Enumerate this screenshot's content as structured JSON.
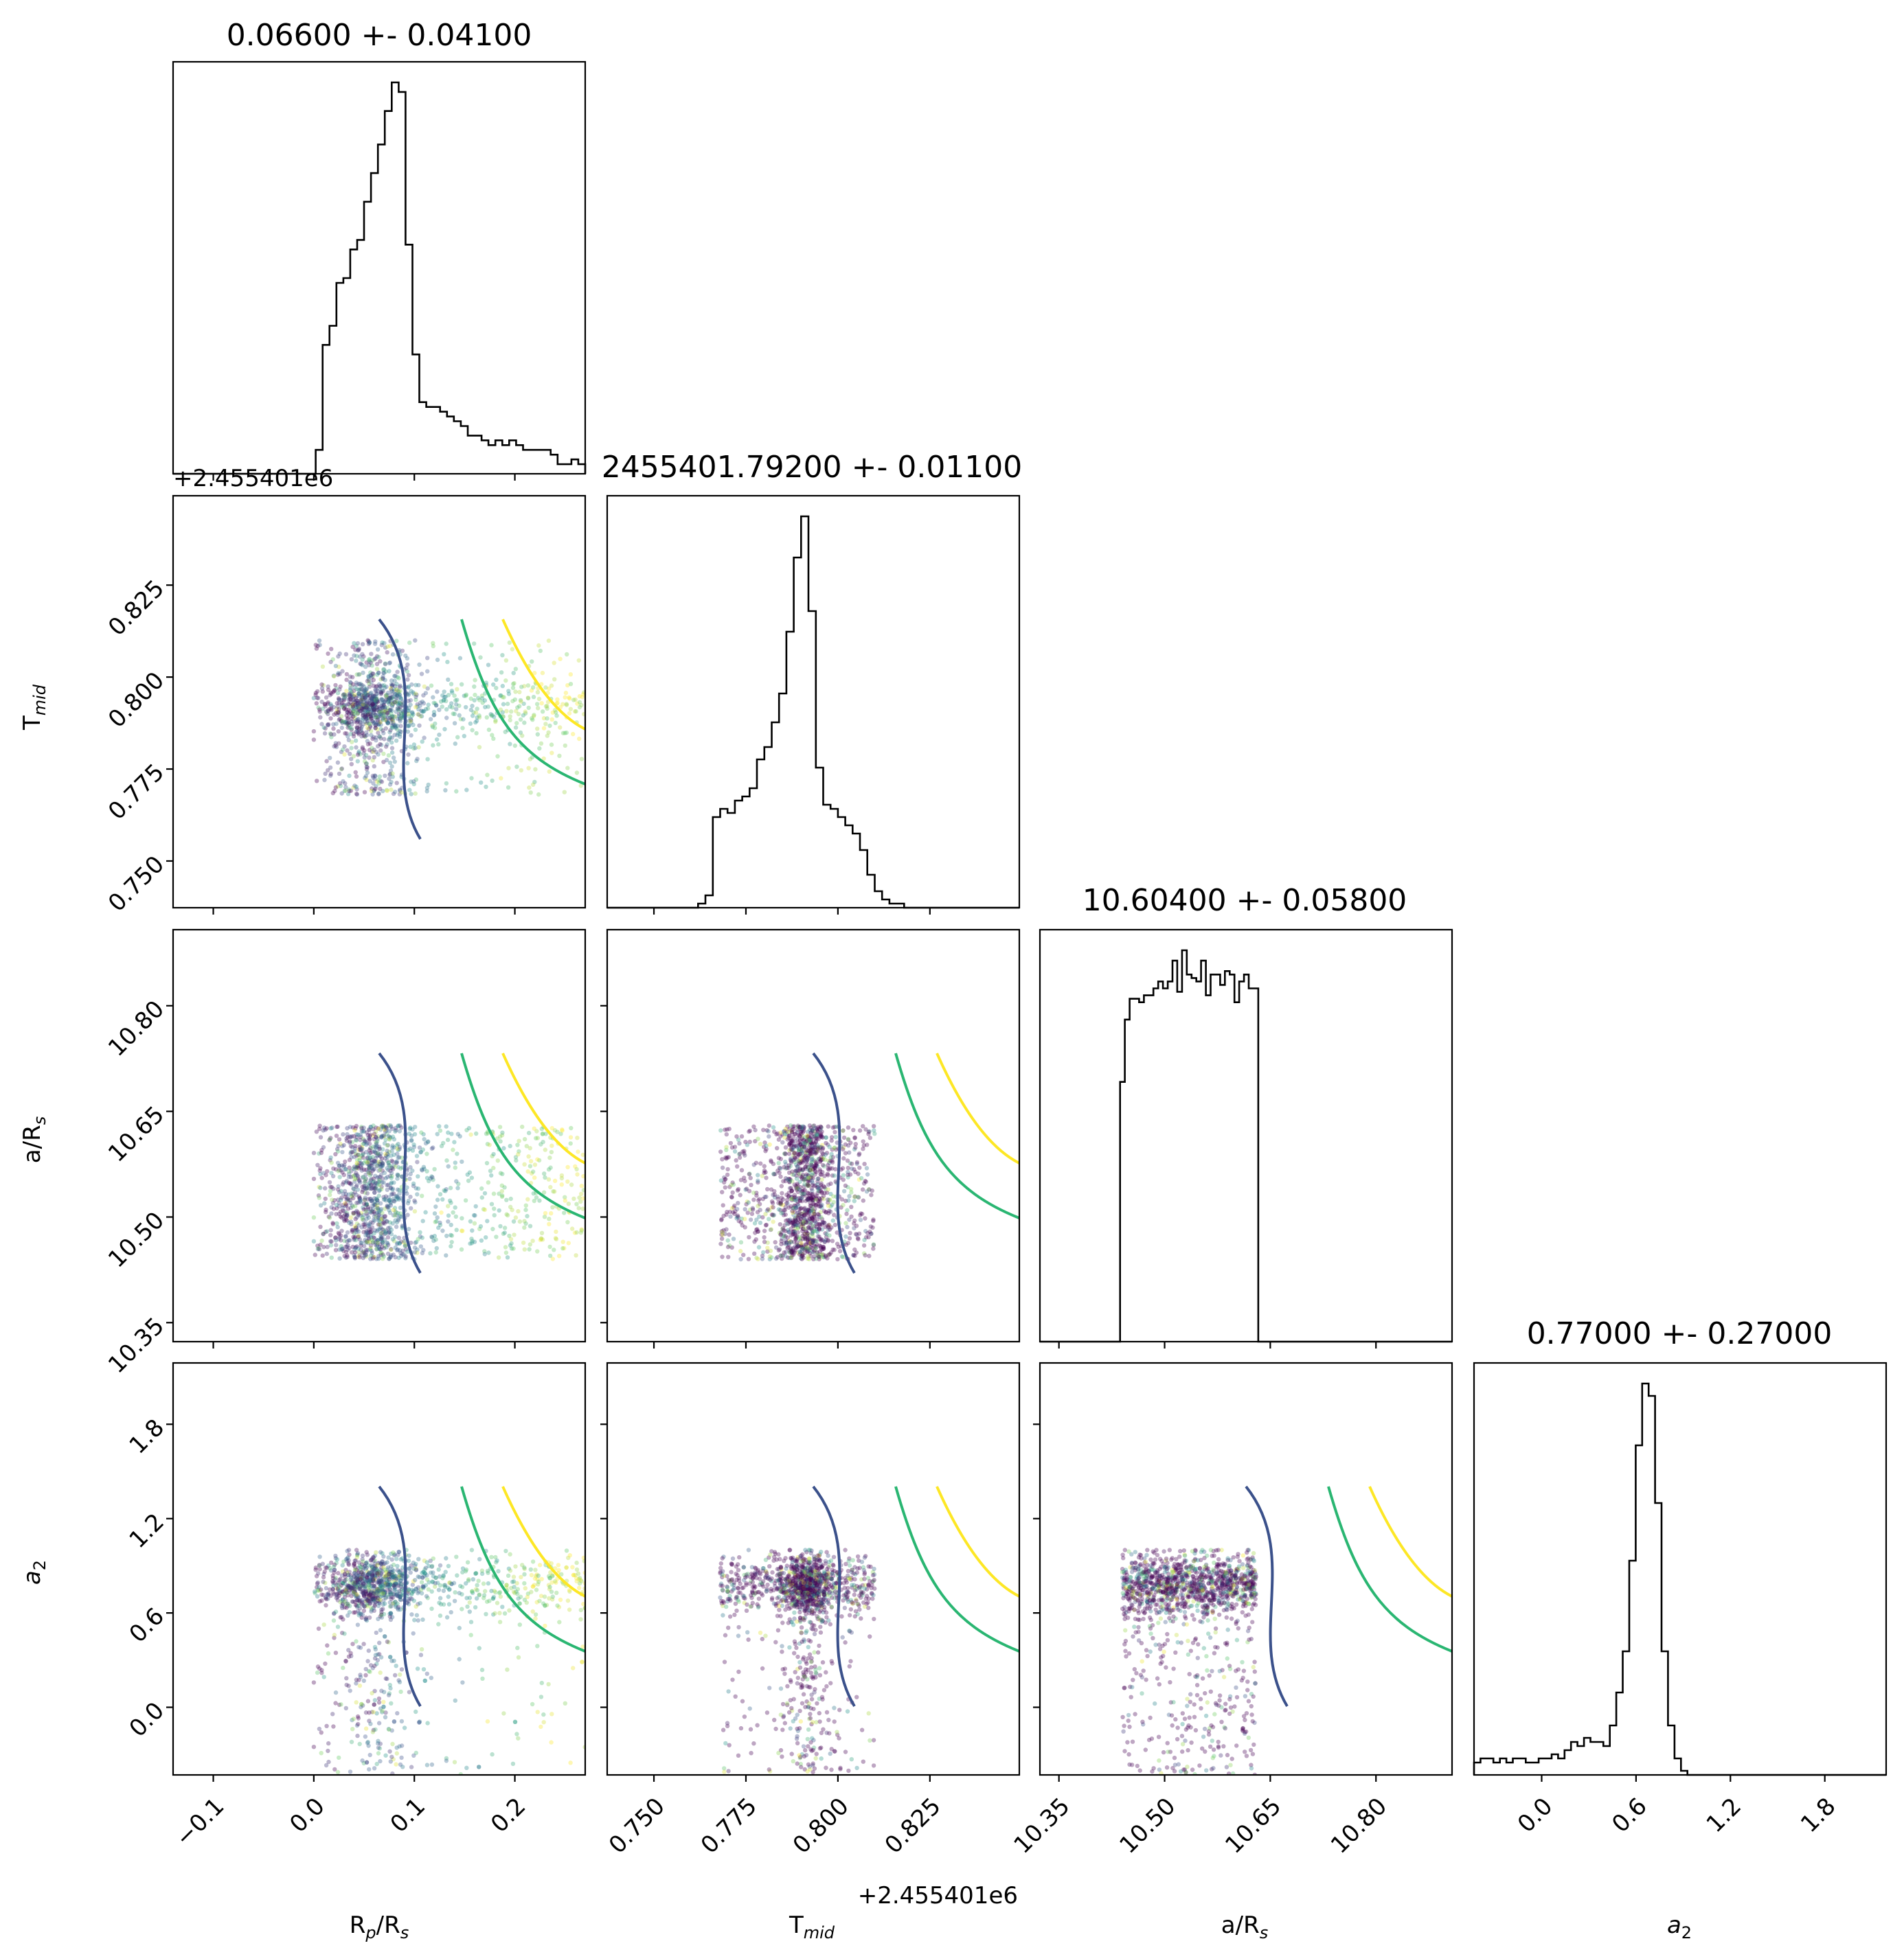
{
  "chart_data": {
    "type": "corner",
    "parameters": [
      {
        "key": "rp",
        "label": "R_p/R_s",
        "title": "0.06600 +- 0.04100",
        "range": [
          -0.14,
          0.27
        ],
        "ticks": [
          -0.1,
          0.0,
          0.1,
          0.2
        ],
        "tick_labels": [
          "−0.1",
          "0.0",
          "0.1",
          "0.2"
        ]
      },
      {
        "key": "tmid",
        "label": "T_mid",
        "title": "2455401.79200 +- 0.01100",
        "range": [
          0.7373,
          0.8493
        ],
        "offset_label": "+2.455401e6",
        "ticks": [
          0.75,
          0.775,
          0.8,
          0.825
        ],
        "tick_labels": [
          "0.750",
          "0.775",
          "0.800",
          "0.825"
        ]
      },
      {
        "key": "ars",
        "label": "a/R_s",
        "title": "10.60400 +- 0.05800",
        "range": [
          10.323,
          10.908
        ],
        "ticks": [
          10.35,
          10.5,
          10.65,
          10.8
        ],
        "tick_labels": [
          "10.35",
          "10.50",
          "10.65",
          "10.80"
        ]
      },
      {
        "key": "a2",
        "label": "a_2",
        "title": "0.77000 +- 0.27000",
        "range": [
          -0.43,
          2.19
        ],
        "ticks": [
          0.0,
          0.6,
          1.2,
          1.8
        ],
        "tick_labels": [
          "0.0",
          "0.6",
          "1.2",
          "1.8"
        ]
      }
    ],
    "histograms": {
      "rp": {
        "lo": -0.005,
        "hi": 0.27,
        "bins": 40,
        "counts": [
          0,
          5,
          27,
          31,
          40,
          41,
          47,
          49,
          57,
          63,
          69,
          76,
          82,
          80,
          48,
          25,
          15,
          14,
          14,
          13,
          12,
          11,
          10,
          8,
          8,
          7,
          6,
          7,
          6,
          7,
          6,
          5,
          5,
          5,
          5,
          4,
          2,
          2,
          3,
          2
        ]
      },
      "tmid": {
        "lo": 0.762,
        "hi": 0.83,
        "bins": 34,
        "counts": [
          1,
          3,
          22,
          24,
          23,
          26,
          27,
          29,
          36,
          39,
          45,
          52,
          67,
          85,
          95,
          72,
          34,
          25,
          24,
          22,
          20,
          18,
          14,
          8,
          4,
          2,
          1,
          1,
          0,
          0,
          0,
          0,
          0,
          0
        ]
      },
      "ars": {
        "lo": 10.43,
        "hi": 10.66,
        "bins": 34,
        "counts": [
          0,
          75,
          93,
          99,
          99,
          98,
          100,
          100,
          102,
          104,
          102,
          104,
          110,
          101,
          113,
          106,
          105,
          104,
          110,
          100,
          106,
          106,
          103,
          107,
          106,
          98,
          104,
          106,
          102,
          102,
          0,
          0,
          0,
          0
        ]
      },
      "a2": {
        "lo": -0.43,
        "hi": 1.05,
        "bins": 36,
        "counts": [
          3,
          4,
          4,
          3,
          4,
          3,
          4,
          4,
          3,
          3,
          4,
          4,
          5,
          4,
          6,
          8,
          7,
          9,
          8,
          8,
          7,
          12,
          20,
          30,
          52,
          80,
          95,
          92,
          66,
          30,
          12,
          4,
          1,
          0,
          0,
          0
        ]
      }
    },
    "scatter_colormap": "viridis",
    "contour_colors": [
      "#3b518b",
      "#2ab672",
      "#fde725"
    ],
    "title_font_size": 44,
    "label_font_size": 34,
    "tick_font_size": 34
  }
}
